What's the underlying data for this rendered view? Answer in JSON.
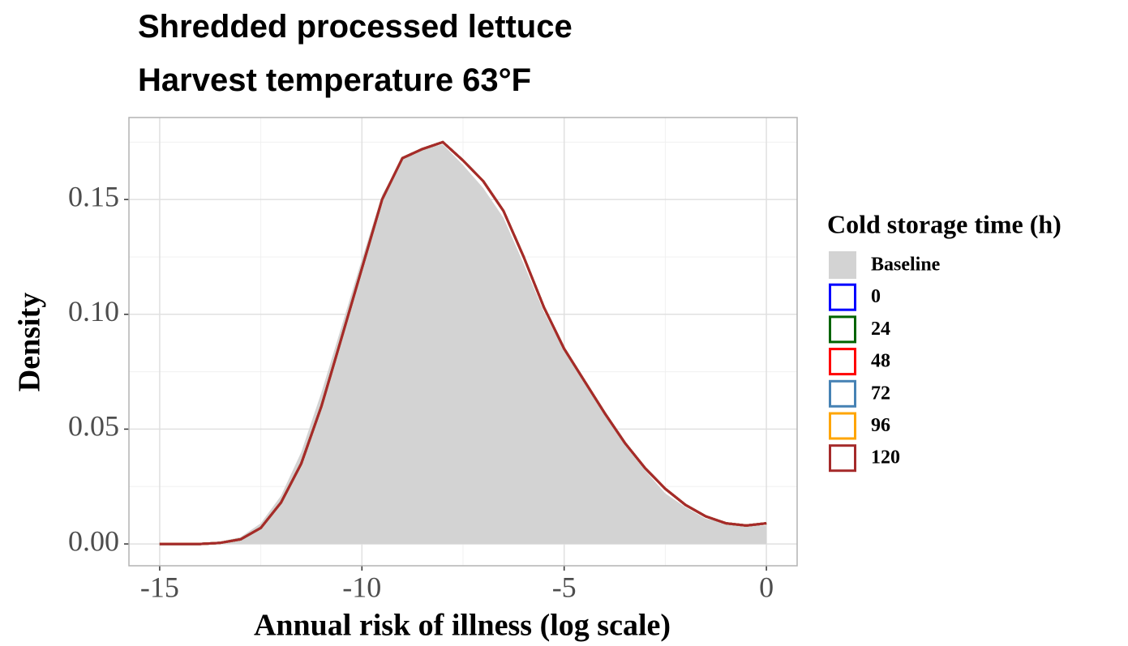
{
  "chart_data": {
    "type": "density",
    "title": [
      "Shredded processed lettuce",
      "Harvest temperature 63°F"
    ],
    "xlabel": "Annual risk of illness (log scale)",
    "ylabel": "Density",
    "legend_title": "Cold storage time (h)",
    "legend": "right",
    "grid": true,
    "xlim": [
      -15.76,
      0.76
    ],
    "ylim": [
      -0.0095,
      0.1857
    ],
    "xticks": [
      -15,
      -10,
      -5,
      0
    ],
    "yticks": [
      {
        "value": 0,
        "label": "0.00"
      },
      {
        "value": 0.05,
        "label": "0.05"
      },
      {
        "value": 0.1,
        "label": "0.10"
      },
      {
        "value": 0.15,
        "label": "0.15"
      }
    ],
    "xminor": [
      -12.5,
      -7.5,
      -2.5
    ],
    "yminor": [
      0.025,
      0.075,
      0.125,
      0.175
    ],
    "x": [
      -15,
      -14.5,
      -14,
      -13.5,
      -13,
      -12.5,
      -12,
      -11.5,
      -11,
      -10.5,
      -10,
      -9.5,
      -9,
      -8.5,
      -8,
      -7.5,
      -7,
      -6.5,
      -6,
      -5.5,
      -5,
      -4.5,
      -4,
      -3.5,
      -3,
      -2.5,
      -2,
      -1.5,
      -1,
      -0.5,
      0
    ],
    "series": [
      {
        "name": "Baseline",
        "style": "area",
        "color": "#d3d3d3",
        "values": [
          0,
          0,
          0,
          0.001,
          0.003,
          0.009,
          0.021,
          0.04,
          0.066,
          0.095,
          0.124,
          0.152,
          0.168,
          0.172,
          0.174,
          0.165,
          0.155,
          0.142,
          0.122,
          0.101,
          0.084,
          0.07,
          0.056,
          0.043,
          0.032,
          0.022,
          0.016,
          0.011,
          0.009,
          0.008,
          0.008
        ]
      },
      {
        "name": "0",
        "style": "line",
        "color": "#0000ff",
        "values": [
          0,
          0,
          0,
          0.0005,
          0.002,
          0.007,
          0.018,
          0.035,
          0.06,
          0.09,
          0.12,
          0.15,
          0.168,
          0.172,
          0.175,
          0.167,
          0.158,
          0.145,
          0.125,
          0.103,
          0.085,
          0.071,
          0.057,
          0.044,
          0.033,
          0.024,
          0.017,
          0.012,
          0.009,
          0.008,
          0.009
        ]
      },
      {
        "name": "24",
        "style": "line",
        "color": "#006400",
        "values": [
          0,
          0,
          0,
          0.0005,
          0.002,
          0.007,
          0.018,
          0.035,
          0.06,
          0.09,
          0.12,
          0.15,
          0.168,
          0.172,
          0.175,
          0.167,
          0.158,
          0.145,
          0.125,
          0.103,
          0.085,
          0.071,
          0.057,
          0.044,
          0.033,
          0.024,
          0.017,
          0.012,
          0.009,
          0.008,
          0.009
        ]
      },
      {
        "name": "48",
        "style": "line",
        "color": "#ff0000",
        "values": [
          0,
          0,
          0,
          0.0005,
          0.002,
          0.007,
          0.018,
          0.035,
          0.06,
          0.09,
          0.12,
          0.15,
          0.168,
          0.172,
          0.175,
          0.167,
          0.158,
          0.145,
          0.125,
          0.103,
          0.085,
          0.071,
          0.057,
          0.044,
          0.033,
          0.024,
          0.017,
          0.012,
          0.009,
          0.008,
          0.009
        ]
      },
      {
        "name": "72",
        "style": "line",
        "color": "#4682b4",
        "values": [
          0,
          0,
          0,
          0.0005,
          0.002,
          0.007,
          0.018,
          0.035,
          0.06,
          0.09,
          0.12,
          0.15,
          0.168,
          0.172,
          0.175,
          0.167,
          0.158,
          0.145,
          0.125,
          0.103,
          0.085,
          0.071,
          0.057,
          0.044,
          0.033,
          0.024,
          0.017,
          0.012,
          0.009,
          0.008,
          0.009
        ]
      },
      {
        "name": "96",
        "style": "line",
        "color": "#ffa500",
        "values": [
          0,
          0,
          0,
          0.0005,
          0.002,
          0.007,
          0.018,
          0.035,
          0.06,
          0.09,
          0.12,
          0.15,
          0.168,
          0.172,
          0.175,
          0.167,
          0.158,
          0.145,
          0.125,
          0.103,
          0.085,
          0.071,
          0.057,
          0.044,
          0.033,
          0.024,
          0.017,
          0.012,
          0.009,
          0.008,
          0.009
        ]
      },
      {
        "name": "120",
        "style": "line",
        "color": "#a52a2a",
        "values": [
          0,
          0,
          0,
          0.0005,
          0.002,
          0.007,
          0.018,
          0.035,
          0.06,
          0.09,
          0.12,
          0.15,
          0.168,
          0.172,
          0.175,
          0.167,
          0.158,
          0.145,
          0.125,
          0.103,
          0.085,
          0.071,
          0.057,
          0.044,
          0.033,
          0.024,
          0.017,
          0.012,
          0.009,
          0.008,
          0.009
        ]
      }
    ]
  }
}
